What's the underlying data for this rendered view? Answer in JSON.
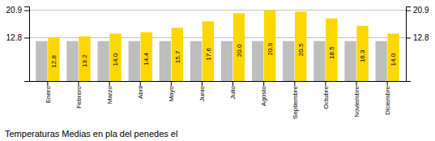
{
  "chart_data": {
    "type": "bar",
    "title": "Temperaturas Medias en pla del penedes el",
    "categories": [
      "Enero",
      "Febrero",
      "Marzo",
      "Abril",
      "Mayo",
      "Junio",
      "Julio",
      "Agosto",
      "Septiembre",
      "Octubre",
      "Noviembre",
      "Diciembre"
    ],
    "series": [
      {
        "color": "#BEBEBE",
        "values": [
          11.8,
          11.8,
          11.8,
          11.8,
          11.8,
          11.8,
          11.8,
          11.8,
          11.8,
          11.8,
          11.8,
          11.8
        ]
      },
      {
        "color": "#FFD700",
        "values": [
          12.8,
          13.2,
          14.0,
          14.4,
          15.7,
          17.6,
          20.0,
          20.9,
          20.5,
          18.5,
          16.3,
          14.0
        ],
        "value_labels": [
          "12.8",
          "13.2",
          "14.0",
          "14.4",
          "15.7",
          "17.6",
          "20.0",
          "20.9",
          "20.5",
          "18.5",
          "16.3",
          "14.0"
        ],
        "data_labels": true
      }
    ],
    "ylim": [
      0,
      22.0
    ],
    "yticks": [
      12.8,
      20.9
    ],
    "y2lim": [
      0,
      22.0
    ],
    "y2ticks": [
      12.8,
      20.9
    ],
    "grid": true
  }
}
